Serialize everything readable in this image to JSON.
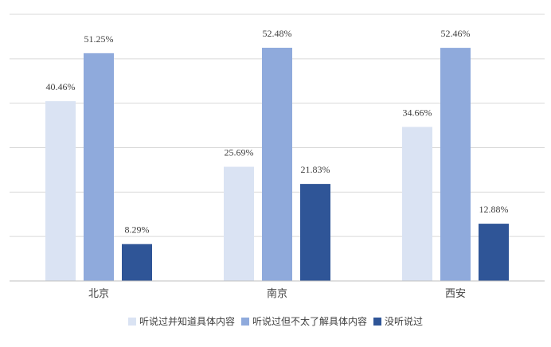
{
  "chart_data": {
    "type": "bar",
    "title": "",
    "xlabel": "",
    "ylabel": "",
    "ylim": [
      0,
      60
    ],
    "grid": true,
    "legend_position": "bottom",
    "categories": [
      "北京",
      "南京",
      "西安"
    ],
    "series": [
      {
        "name": "听说过并知道具体内容",
        "color": "#dae3f3",
        "values": [
          40.46,
          25.69,
          34.66
        ],
        "labels": [
          "40.46%",
          "25.69%",
          "34.66%"
        ]
      },
      {
        "name": "听说过但不太了解具体内容",
        "color": "#8faadc",
        "values": [
          51.25,
          52.48,
          52.46
        ],
        "labels": [
          "51.25%",
          "52.48%",
          "52.46%"
        ]
      },
      {
        "name": "没听说过",
        "color": "#2f5597",
        "values": [
          8.29,
          21.83,
          12.88
        ],
        "labels": [
          "8.29%",
          "21.83%",
          "12.88%"
        ]
      }
    ]
  }
}
